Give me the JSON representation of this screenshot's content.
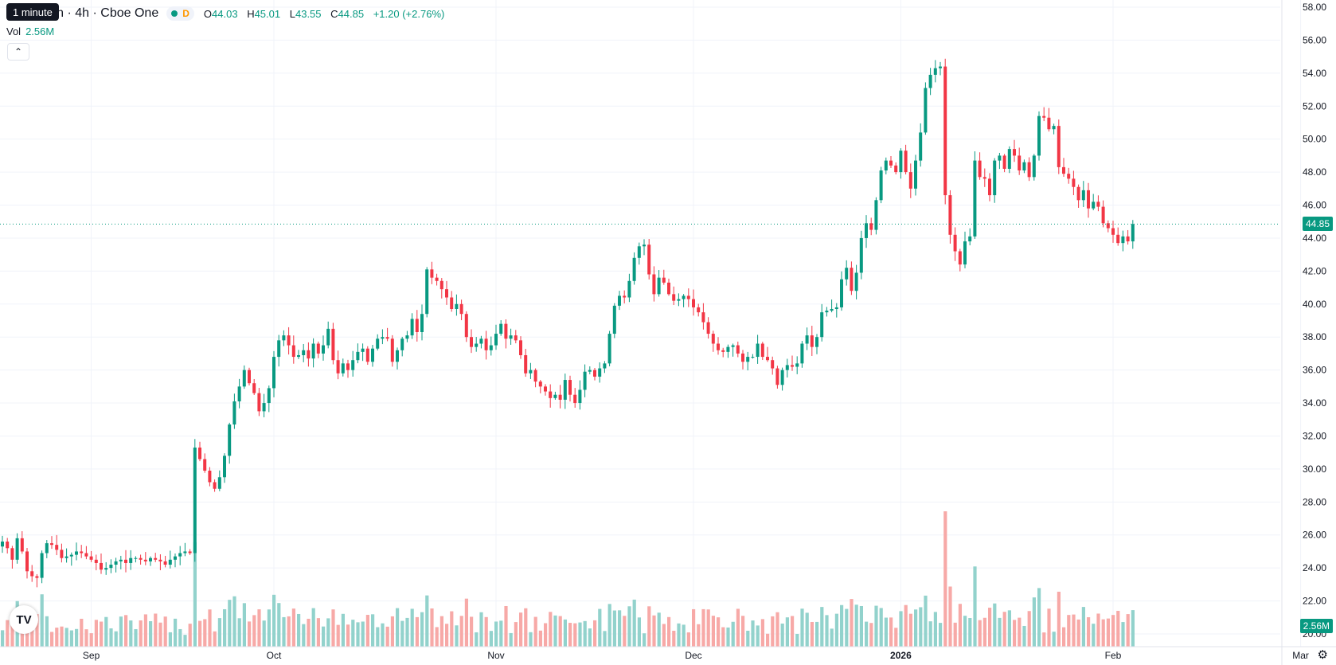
{
  "legend": {
    "title": "orporation · 4h · Cboe One",
    "d_badge": "D",
    "open_label": "O",
    "open": "44.03",
    "high_label": "H",
    "high": "45.01",
    "low_label": "L",
    "low": "43.55",
    "close_label": "C",
    "close": "44.85",
    "change": "+1.20 (+2.76%)"
  },
  "volume": {
    "label": "Vol",
    "value": "2.56M"
  },
  "tooltip": "1 minute",
  "last_price_tag": "44.85",
  "last_volume_tag": "2.56M",
  "colors": {
    "up": "#089981",
    "down": "#f23645",
    "up_volume": "#92d2cc",
    "down_volume": "#f7a9a7",
    "grid": "#f0f3fa"
  },
  "chart_data": {
    "type": "candlestick",
    "symbol_timeframe": "4h",
    "exchange": "Cboe One",
    "price_axis": {
      "ticks": [
        "58.00",
        "56.00",
        "54.00",
        "52.00",
        "50.00",
        "48.00",
        "46.00",
        "44.00",
        "42.00",
        "40.00",
        "38.00",
        "36.00",
        "34.00",
        "32.00",
        "30.00",
        "28.00",
        "26.00",
        "24.00",
        "22.00",
        "20.00"
      ],
      "range": [
        20,
        58
      ]
    },
    "time_axis": {
      "labels": [
        {
          "text": "Sep",
          "bold": false,
          "bar": 18
        },
        {
          "text": "Oct",
          "bold": false,
          "bar": 55
        },
        {
          "text": "Nov",
          "bold": false,
          "bar": 100
        },
        {
          "text": "Dec",
          "bold": false,
          "bar": 140
        },
        {
          "text": "2026",
          "bold": true,
          "bar": 182
        },
        {
          "text": "Feb",
          "bold": false,
          "bar": 225
        },
        {
          "text": "Mar",
          "bold": false,
          "bar": 263
        }
      ]
    },
    "last_close": 44.85,
    "close_series": [
      25.6,
      25.2,
      24.5,
      25.8,
      25.0,
      23.8,
      23.5,
      23.4,
      24.9,
      25.5,
      25.4,
      25.1,
      24.6,
      24.7,
      24.8,
      25.0,
      24.9,
      24.7,
      24.5,
      24.3,
      23.9,
      24.0,
      24.2,
      24.4,
      24.5,
      24.3,
      24.6,
      24.6,
      24.5,
      24.4,
      24.6,
      24.5,
      24.4,
      24.2,
      24.5,
      24.7,
      24.9,
      25.0,
      24.9,
      31.3,
      30.6,
      29.9,
      29.2,
      28.8,
      29.5,
      30.8,
      32.7,
      34.1,
      35.0,
      36.0,
      35.2,
      34.6,
      33.5,
      34.0,
      34.9,
      36.8,
      37.8,
      38.1,
      37.5,
      36.8,
      36.9,
      37.2,
      36.7,
      37.6,
      37.0,
      37.5,
      38.5,
      36.6,
      35.8,
      36.4,
      36.0,
      36.6,
      37.1,
      37.3,
      36.5,
      37.3,
      37.9,
      38.0,
      37.9,
      36.5,
      37.2,
      37.9,
      38.1,
      39.1,
      38.3,
      39.4,
      42.1,
      41.6,
      41.4,
      40.9,
      40.4,
      39.7,
      40.0,
      39.4,
      38.0,
      37.4,
      37.6,
      37.9,
      37.2,
      37.5,
      38.2,
      38.8,
      37.9,
      38.1,
      37.8,
      36.9,
      35.8,
      36.0,
      35.3,
      35.0,
      34.7,
      34.3,
      34.5,
      34.2,
      35.4,
      34.5,
      34.0,
      34.8,
      35.9,
      36.0,
      35.6,
      36.1,
      36.4,
      38.2,
      39.9,
      40.5,
      40.4,
      41.4,
      42.8,
      43.5,
      43.6,
      41.8,
      40.6,
      41.6,
      41.3,
      40.6,
      40.2,
      40.3,
      40.5,
      40.3,
      39.8,
      39.5,
      38.9,
      38.2,
      37.6,
      37.2,
      37.1,
      37.4,
      37.5,
      37.0,
      36.5,
      36.8,
      36.8,
      37.6,
      36.8,
      36.6,
      36.1,
      35.1,
      36.0,
      36.3,
      36.2,
      36.4,
      37.6,
      38.1,
      37.4,
      38.0,
      39.5,
      39.6,
      39.7,
      39.8,
      41.5,
      42.2,
      40.8,
      41.9,
      44.0,
      44.9,
      44.5,
      46.3,
      48.1,
      48.7,
      48.4,
      48.0,
      49.3,
      48.0,
      47.0,
      48.7,
      50.4,
      53.1,
      53.9,
      54.3,
      54.4,
      46.6,
      44.2,
      43.2,
      42.4,
      43.8,
      44.1,
      48.7,
      47.7,
      47.6,
      46.6,
      48.7,
      49.0,
      48.2,
      49.4,
      49.0,
      48.1,
      48.6,
      47.7,
      49.0,
      51.4,
      51.3,
      50.6,
      50.8,
      48.3,
      47.9,
      47.6,
      47.1,
      46.3,
      46.9,
      45.8,
      46.2,
      45.9,
      44.9,
      44.6,
      44.2,
      43.7,
      44.1,
      43.8,
      44.85
    ]
  }
}
